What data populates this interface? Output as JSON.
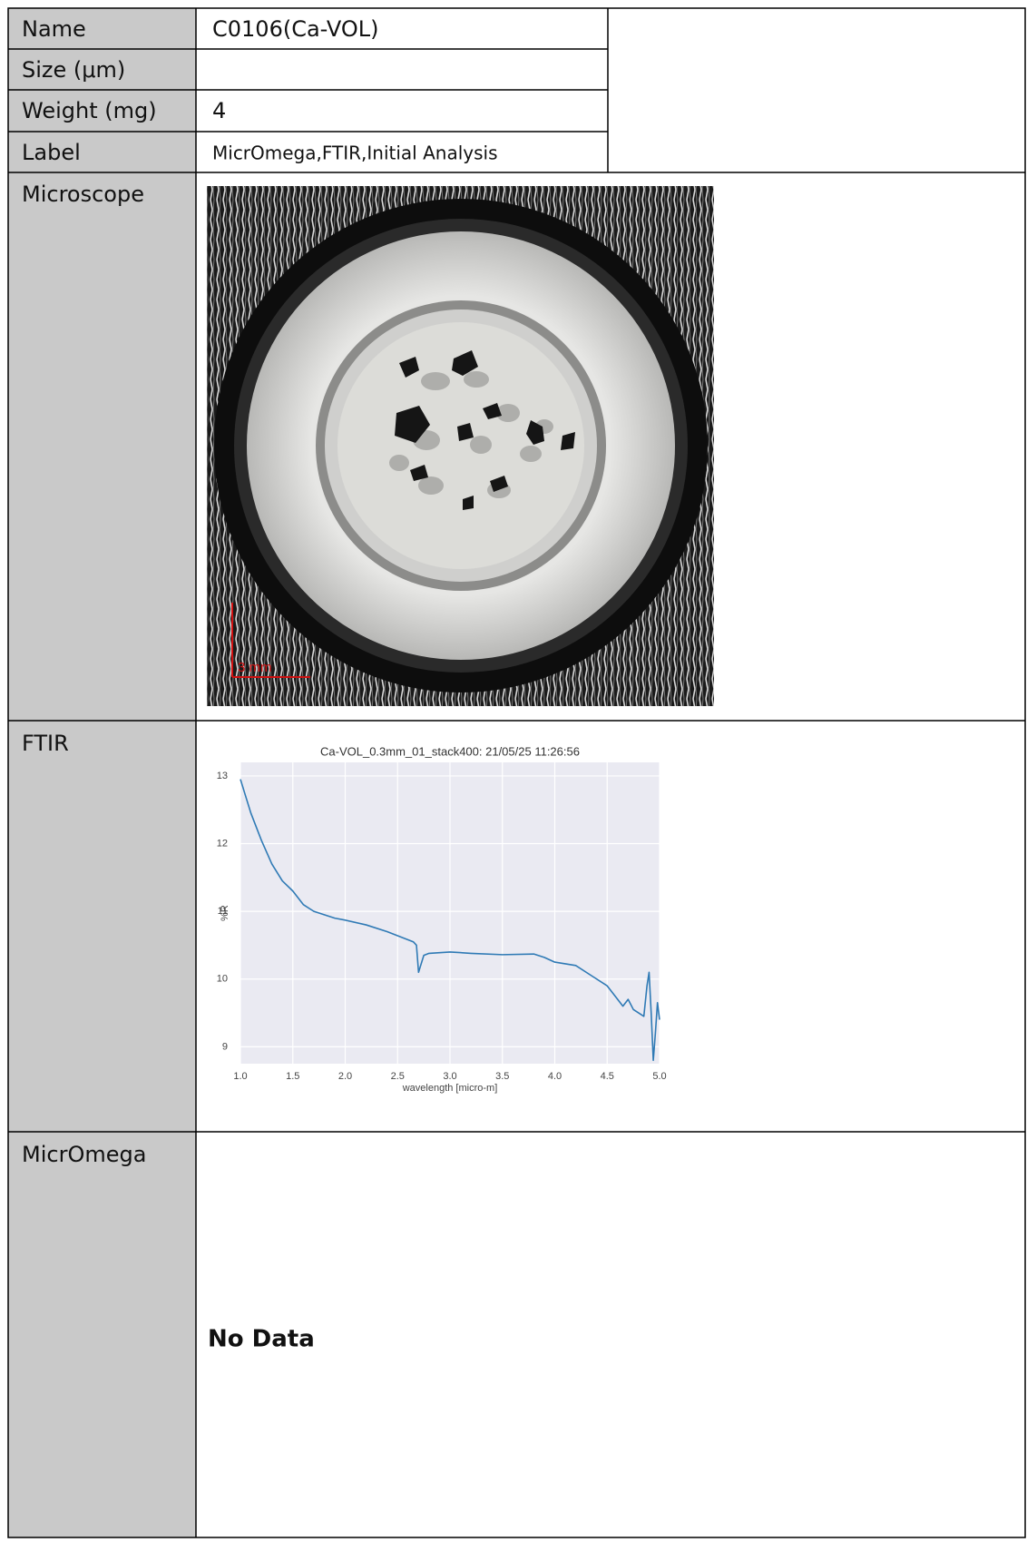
{
  "fields": {
    "name": {
      "label": "Name",
      "value": "C0106(Ca-VOL)"
    },
    "size": {
      "label": "Size (μm)"
    },
    "weight": {
      "label": "Weight (mg)",
      "value": "4"
    },
    "tags": {
      "label": "Label",
      "value": "MicrOmega,FTIR,Initial Analysis"
    }
  },
  "microscope": {
    "label": "Microscope",
    "scale_bar": "3 mm"
  },
  "ftir": {
    "label": "FTIR",
    "chart_data": {
      "type": "line",
      "title": "Ca-VOL_0.3mm_01_stack400:  21/05/25 11:26:56",
      "x_label": "wavelength [micro-m]",
      "y_label": "%R",
      "x": [
        1.0,
        1.05,
        1.1,
        1.2,
        1.3,
        1.4,
        1.5,
        1.6,
        1.7,
        1.8,
        1.9,
        2.0,
        2.2,
        2.4,
        2.6,
        2.65,
        2.68,
        2.7,
        2.72,
        2.75,
        2.8,
        3.0,
        3.2,
        3.5,
        3.8,
        3.9,
        4.0,
        4.2,
        4.35,
        4.5,
        4.6,
        4.65,
        4.7,
        4.75,
        4.8,
        4.85,
        4.88,
        4.9,
        4.92,
        4.94,
        4.96,
        4.98,
        5.0
      ],
      "values": [
        12.95,
        12.7,
        12.45,
        12.05,
        11.7,
        11.45,
        11.3,
        11.1,
        11.0,
        10.95,
        10.9,
        10.87,
        10.8,
        10.7,
        10.58,
        10.55,
        10.5,
        10.1,
        10.2,
        10.35,
        10.38,
        10.4,
        10.38,
        10.36,
        10.37,
        10.32,
        10.25,
        10.2,
        10.05,
        9.9,
        9.7,
        9.6,
        9.7,
        9.55,
        9.5,
        9.45,
        9.9,
        10.1,
        9.5,
        8.8,
        9.2,
        9.65,
        9.4
      ],
      "color": "#2f7ab5",
      "xlim": [
        1.0,
        5.0
      ],
      "ylim": [
        8.75,
        13.2
      ],
      "xticks": [
        {
          "value": 1,
          "label": "1.0"
        },
        1.5,
        {
          "value": 2,
          "label": "2.0"
        },
        2.5,
        {
          "value": 3,
          "label": "3.0"
        },
        3.5,
        {
          "value": 4,
          "label": "4.0"
        },
        4.5,
        {
          "value": 5,
          "label": "5.0"
        }
      ],
      "yticks": [
        9,
        10,
        11,
        12,
        13
      ],
      "grid": true
    }
  },
  "micromega": {
    "label": "MicrOmega",
    "value": "No Data"
  }
}
